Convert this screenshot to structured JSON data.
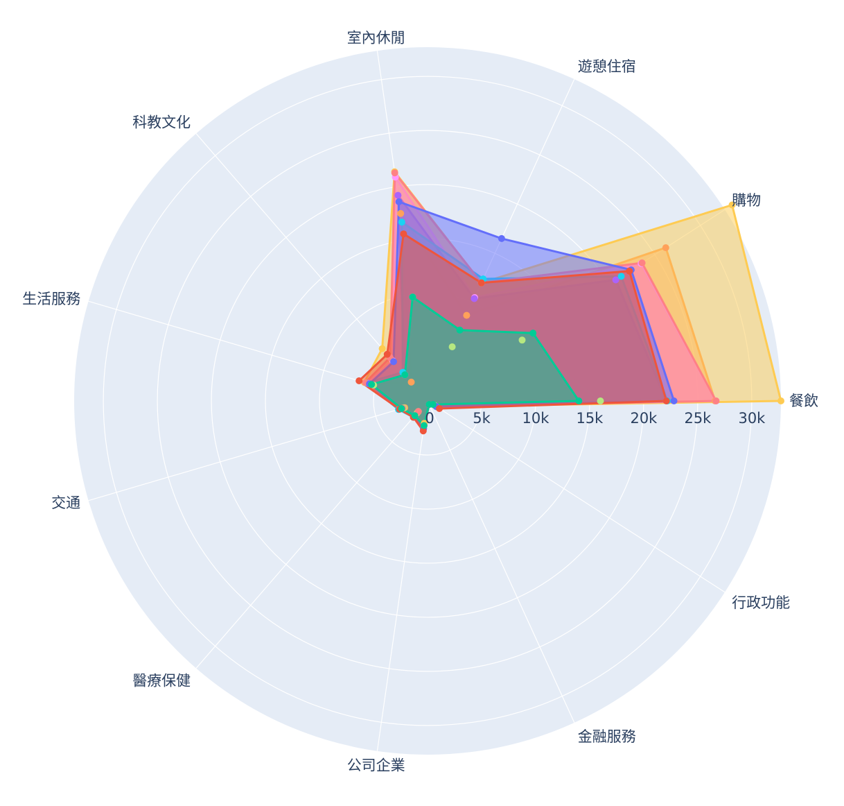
{
  "chart_data": {
    "type": "radar",
    "categories": [
      "餐飲",
      "購物",
      "遊憩住宿",
      "室內休閒",
      "科教文化",
      "生活服務",
      "交通",
      "醫療保健",
      "公司企業",
      "金融服務",
      "行政功能"
    ],
    "radial_ticks": [
      "0",
      "5k",
      "10k",
      "15k",
      "20k",
      "25k",
      "30k"
    ],
    "radial_tick_values": [
      0,
      5000,
      10000,
      15000,
      20000,
      25000,
      30000
    ],
    "rmax": 32700,
    "grid": true,
    "series": [
      {
        "color": "#ffa15a",
        "values": [
          26600,
          26200,
          8700,
          17500,
          2300,
          5800,
          2200,
          1500,
          2100,
          350,
          900
        ]
      },
      {
        "color": "#fecb52",
        "values": [
          32700,
          33500,
          12000,
          21400,
          6400,
          6100,
          2300,
          1300,
          2100,
          350,
          1000
        ]
      },
      {
        "color": "#b6e880",
        "values": [
          16000,
          10400,
          5500,
          9700,
          3200,
          5200,
          2300,
          1400,
          2500,
          350,
          800
        ]
      },
      {
        "color": "#ff97ff",
        "values": [
          26700,
          23500,
          10500,
          20900,
          4900,
          5800,
          2500,
          1800,
          2300,
          350,
          950
        ]
      },
      {
        "color": "#ab63fa",
        "values": [
          22100,
          20700,
          10400,
          19200,
          3200,
          5500,
          2700,
          1800,
          2600,
          350,
          1000
        ]
      },
      {
        "color": "#19d3f3",
        "values": [
          22200,
          21300,
          12400,
          16700,
          3500,
          5900,
          2800,
          2000,
          2600,
          350,
          1000
        ]
      },
      {
        "color": "#fe8184",
        "values": [
          26700,
          23600,
          12000,
          21300,
          5300,
          6000,
          2400,
          1300,
          2300,
          350,
          950
        ]
      },
      {
        "color": "#636efa",
        "values": [
          22800,
          22400,
          16500,
          18600,
          4800,
          5600,
          2600,
          1900,
          2600,
          350,
          950
        ]
      },
      {
        "color": "#ef553b",
        "values": [
          22100,
          22200,
          12000,
          15600,
          5700,
          6600,
          2700,
          2000,
          2800,
          350,
          1300
        ]
      },
      {
        "color": "#00cc96",
        "values": [
          14000,
          11600,
          7200,
          9700,
          3200,
          5400,
          2500,
          1800,
          2300,
          350,
          600
        ]
      }
    ]
  }
}
